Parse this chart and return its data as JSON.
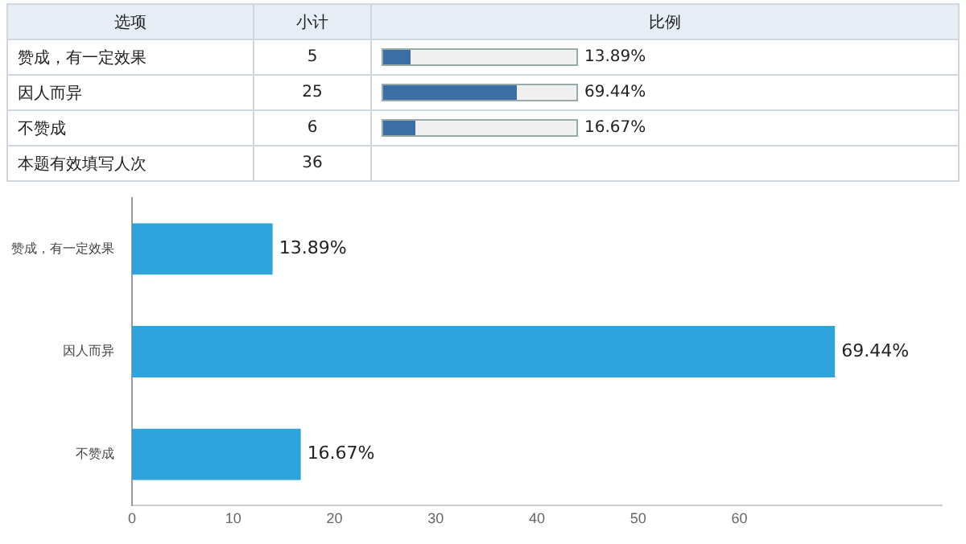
{
  "chart_data": [
    {
      "type": "other",
      "annotations": [
        "选项",
        "小计",
        "比例",
        "本题有效填写人次",
        "36"
      ],
      "categories": [
        "赞成，有一定效果",
        "因人而异",
        "不赞成"
      ],
      "data_labels": true,
      "series": [
        {
          "values": [
            5,
            25,
            6
          ]
        },
        {
          "values": [
            13.89,
            69.44,
            16.67
          ],
          "value_labels": [
            "13.89%",
            "69.44%",
            "16.67%"
          ],
          "color": "#3a6ea5"
        }
      ]
    },
    {
      "type": "bar",
      "orientation": "horizontal",
      "categories": [
        "赞成，有一定效果",
        "因人而异",
        "不赞成"
      ],
      "values": [
        13.89,
        69.44,
        16.67
      ],
      "value_labels": [
        "13.89%",
        "69.44%",
        "16.67%"
      ],
      "color": "#2ea3dc",
      "xlim": [
        0,
        80
      ],
      "xticks": [
        0,
        10,
        20,
        30,
        40,
        50,
        60
      ],
      "grid": false,
      "legend": false
    }
  ]
}
